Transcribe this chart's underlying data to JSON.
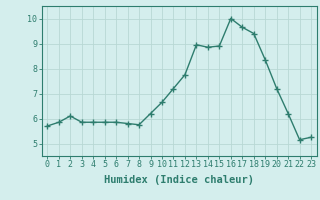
{
  "x": [
    0,
    1,
    2,
    3,
    4,
    5,
    6,
    7,
    8,
    9,
    10,
    11,
    12,
    13,
    14,
    15,
    16,
    17,
    18,
    19,
    20,
    21,
    22,
    23
  ],
  "y": [
    5.7,
    5.85,
    6.1,
    5.85,
    5.85,
    5.85,
    5.85,
    5.8,
    5.75,
    6.2,
    6.65,
    7.2,
    7.75,
    8.95,
    8.85,
    8.9,
    10.0,
    9.65,
    9.4,
    8.35,
    7.2,
    6.2,
    5.15,
    5.25
  ],
  "line_color": "#2e7d6e",
  "marker": "+",
  "marker_size": 4,
  "bg_color": "#d4eeed",
  "grid_color": "#b8d8d4",
  "xlabel": "Humidex (Indice chaleur)",
  "xlim": [
    -0.5,
    23.5
  ],
  "ylim": [
    4.5,
    10.5
  ],
  "yticks": [
    5,
    6,
    7,
    8,
    9,
    10
  ],
  "xticks": [
    0,
    1,
    2,
    3,
    4,
    5,
    6,
    7,
    8,
    9,
    10,
    11,
    12,
    13,
    14,
    15,
    16,
    17,
    18,
    19,
    20,
    21,
    22,
    23
  ],
  "tick_label_fontsize": 6,
  "xlabel_fontsize": 7.5,
  "line_width": 1.0,
  "axis_color": "#2e7d6e",
  "tick_color": "#2e7d6e"
}
